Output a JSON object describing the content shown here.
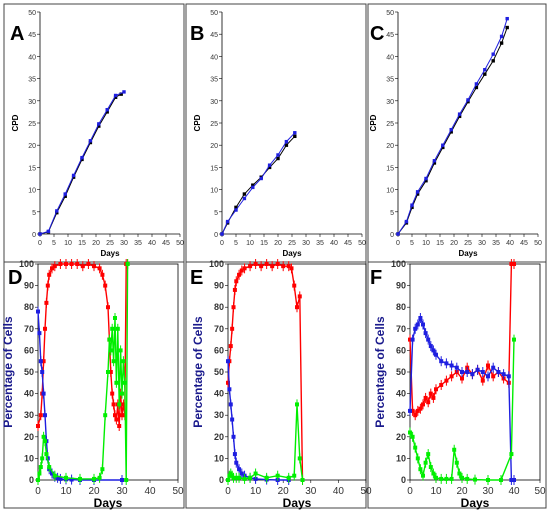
{
  "chart_data": [
    {
      "panel": "A",
      "type": "line",
      "xlabel": "Days",
      "ylabel": "CPD",
      "xlim": [
        0,
        50
      ],
      "ylim": [
        0,
        50
      ],
      "xticks": [
        0,
        5,
        10,
        15,
        20,
        25,
        30,
        35,
        40,
        45,
        50
      ],
      "yticks": [
        0,
        5,
        10,
        15,
        20,
        25,
        30,
        35,
        40,
        45,
        50
      ],
      "series": [
        {
          "color": "#000000",
          "x": [
            0,
            3,
            6,
            9,
            12,
            15,
            18,
            21,
            24,
            27,
            29
          ],
          "y": [
            0,
            0.5,
            4.8,
            8.5,
            12.8,
            16.8,
            20.6,
            24.3,
            27.5,
            30.8,
            31.5
          ]
        },
        {
          "color": "#1f1fe0",
          "x": [
            0,
            3,
            6,
            9,
            12,
            15,
            18,
            21,
            24,
            27,
            30
          ],
          "y": [
            0,
            0.6,
            5.2,
            9.0,
            13.2,
            17.2,
            21.0,
            24.8,
            28.0,
            31.2,
            32.0
          ]
        }
      ]
    },
    {
      "panel": "B",
      "type": "line",
      "xlabel": "Days",
      "ylabel": "CPD",
      "xlim": [
        0,
        50
      ],
      "ylim": [
        0,
        50
      ],
      "xticks": [
        0,
        5,
        10,
        15,
        20,
        25,
        30,
        35,
        40,
        45,
        50
      ],
      "yticks": [
        0,
        5,
        10,
        15,
        20,
        25,
        30,
        35,
        40,
        45,
        50
      ],
      "series": [
        {
          "color": "#000000",
          "x": [
            0,
            2,
            5,
            8,
            11,
            14,
            17,
            20,
            23,
            26
          ],
          "y": [
            0,
            2.5,
            6,
            9,
            11,
            12.8,
            15,
            17,
            20,
            22
          ]
        },
        {
          "color": "#1f1fe0",
          "x": [
            0,
            2,
            5,
            8,
            11,
            14,
            17,
            20,
            23,
            26
          ],
          "y": [
            0,
            2.8,
            5.4,
            8,
            10.5,
            12.5,
            15.5,
            17.8,
            20.8,
            22.8
          ]
        }
      ]
    },
    {
      "panel": "C",
      "type": "line",
      "xlabel": "Days",
      "ylabel": "CPD",
      "xlim": [
        0,
        50
      ],
      "ylim": [
        0,
        50
      ],
      "xticks": [
        0,
        5,
        10,
        15,
        20,
        25,
        30,
        35,
        40,
        45,
        50
      ],
      "yticks": [
        0,
        5,
        10,
        15,
        20,
        25,
        30,
        35,
        40,
        45,
        50
      ],
      "series": [
        {
          "color": "#000000",
          "x": [
            0,
            3,
            5,
            7,
            10,
            13,
            16,
            19,
            22,
            25,
            28,
            31,
            34,
            37,
            39
          ],
          "y": [
            0,
            2.5,
            6,
            9,
            12,
            16,
            19.5,
            23,
            26.5,
            29.8,
            33,
            36,
            39,
            43,
            46.5
          ]
        },
        {
          "color": "#1f1fe0",
          "x": [
            0,
            3,
            5,
            7,
            10,
            13,
            16,
            19,
            22,
            25,
            28,
            31,
            34,
            37,
            39
          ],
          "y": [
            0,
            2.8,
            6.5,
            9.5,
            12.5,
            16.5,
            20,
            23.5,
            27,
            30.2,
            33.8,
            37,
            40.5,
            44.5,
            48.5
          ]
        }
      ]
    },
    {
      "panel": "D",
      "type": "line",
      "xlabel": "Days",
      "ylabel": "Percentage of Cells",
      "xlim": [
        0,
        50
      ],
      "ylim": [
        0,
        100
      ],
      "xticks": [
        0,
        10,
        20,
        30,
        40,
        50
      ],
      "yticks": [
        0,
        10,
        20,
        30,
        40,
        50,
        60,
        70,
        80,
        90,
        100
      ],
      "series": [
        {
          "color": "#ff0000",
          "x": [
            0,
            1,
            1.5,
            2,
            2.5,
            3,
            3.5,
            4,
            5,
            6,
            8,
            10,
            12,
            14,
            16,
            18,
            20,
            22,
            23,
            24,
            25,
            25.5,
            26,
            26.5,
            27,
            27.5,
            28,
            28.5,
            29,
            29.5,
            30,
            30.5,
            31,
            31.5,
            32
          ],
          "y": [
            25,
            30,
            40,
            55,
            70,
            82,
            90,
            95,
            98,
            99,
            100,
            100,
            100,
            100,
            99,
            100,
            99,
            98,
            95,
            90,
            80,
            65,
            50,
            40,
            35,
            30,
            28,
            35,
            25,
            40,
            30,
            35,
            30,
            100,
            100
          ]
        },
        {
          "color": "#1f1fe0",
          "x": [
            0,
            0.5,
            1,
            1.5,
            2,
            2.5,
            3,
            3.5,
            4,
            5,
            6,
            7,
            8,
            10,
            12,
            15,
            20,
            30
          ],
          "y": [
            78,
            68,
            55,
            50,
            40,
            30,
            18,
            10,
            5,
            3,
            1.5,
            1,
            0.5,
            0.3,
            0.2,
            0,
            0,
            0
          ]
        },
        {
          "color": "#00ee00",
          "x": [
            0,
            0.5,
            1,
            1.5,
            2,
            2.5,
            3,
            4,
            6,
            10,
            15,
            20,
            22,
            23,
            24,
            25,
            25.5,
            26,
            26.5,
            27,
            27.5,
            28,
            28.5,
            29,
            29.5,
            30,
            30.5,
            31,
            31.5,
            32
          ],
          "y": [
            0,
            3,
            6,
            10,
            20,
            18,
            12,
            6,
            2,
            1,
            0.5,
            0.5,
            1,
            5,
            30,
            50,
            65,
            60,
            70,
            55,
            75,
            45,
            70,
            35,
            60,
            40,
            55,
            45,
            0,
            100
          ]
        }
      ]
    },
    {
      "panel": "E",
      "type": "line",
      "xlabel": "Days",
      "ylabel": "Percentage of Cells",
      "xlim": [
        0,
        50
      ],
      "ylim": [
        0,
        100
      ],
      "xticks": [
        0,
        10,
        20,
        30,
        40,
        50
      ],
      "yticks": [
        0,
        10,
        20,
        30,
        40,
        50,
        60,
        70,
        80,
        90,
        100
      ],
      "series": [
        {
          "color": "#ff0000",
          "x": [
            0,
            0.5,
            1,
            1.5,
            2,
            2.5,
            3,
            4,
            5,
            6,
            8,
            10,
            12,
            14,
            16,
            18,
            20,
            22,
            23,
            24,
            25,
            26,
            27
          ],
          "y": [
            45,
            55,
            62,
            70,
            80,
            88,
            92,
            95,
            97,
            98,
            99,
            100,
            99,
            100,
            99,
            100,
            99,
            99,
            98,
            90,
            80,
            85,
            0
          ]
        },
        {
          "color": "#1f1fe0",
          "x": [
            0,
            0.5,
            1,
            1.5,
            2,
            2.5,
            3,
            4,
            5,
            6,
            8,
            10,
            14,
            18,
            22
          ],
          "y": [
            55,
            42,
            35,
            28,
            20,
            12,
            8,
            5,
            3,
            2,
            1,
            0.5,
            0.2,
            0,
            0
          ]
        },
        {
          "color": "#00ee00",
          "x": [
            0,
            0.5,
            1,
            1.5,
            2,
            3,
            4,
            6,
            8,
            10,
            14,
            18,
            22,
            24,
            25,
            26,
            27
          ],
          "y": [
            0,
            2,
            3,
            2,
            1,
            1,
            1,
            0.5,
            1,
            3,
            1,
            2,
            1,
            2,
            35,
            10,
            0
          ]
        }
      ]
    },
    {
      "panel": "F",
      "type": "line",
      "xlabel": "Days",
      "ylabel": "Percentage of Cells",
      "xlim": [
        0,
        50
      ],
      "ylim": [
        0,
        100
      ],
      "xticks": [
        0,
        10,
        20,
        30,
        40,
        50
      ],
      "yticks": [
        0,
        10,
        20,
        30,
        40,
        50,
        60,
        70,
        80,
        90,
        100
      ],
      "series": [
        {
          "color": "#ff0000",
          "x": [
            0,
            1,
            2,
            3,
            4,
            5,
            6,
            7,
            8,
            9,
            10,
            12,
            14,
            16,
            18,
            20,
            22,
            24,
            26,
            28,
            30,
            32,
            34,
            36,
            38,
            39,
            40
          ],
          "y": [
            65,
            32,
            30,
            32,
            33,
            35,
            38,
            36,
            40,
            38,
            42,
            44,
            46,
            48,
            50,
            47,
            52,
            49,
            51,
            46,
            53,
            48,
            50,
            47,
            45,
            100,
            100
          ]
        },
        {
          "color": "#1f1fe0",
          "x": [
            0,
            1,
            2,
            3,
            4,
            5,
            6,
            7,
            8,
            9,
            10,
            12,
            14,
            16,
            18,
            20,
            22,
            24,
            26,
            28,
            30,
            32,
            34,
            36,
            38,
            39,
            40
          ],
          "y": [
            32,
            65,
            70,
            72,
            75,
            72,
            68,
            65,
            62,
            60,
            58,
            55,
            54,
            53,
            52,
            50,
            50,
            49,
            51,
            50,
            48,
            52,
            50,
            49,
            48,
            0,
            0
          ]
        },
        {
          "color": "#00ee00",
          "x": [
            0,
            1,
            2,
            3,
            4,
            5,
            6,
            7,
            8,
            9,
            10,
            12,
            14,
            16,
            17,
            18,
            19,
            20,
            22,
            25,
            30,
            35,
            39,
            40
          ],
          "y": [
            22,
            20,
            15,
            10,
            5,
            2,
            8,
            12,
            6,
            3,
            1,
            0.5,
            0.5,
            0.5,
            14,
            8,
            3,
            1,
            0.5,
            0.2,
            0,
            0,
            12,
            65
          ]
        }
      ]
    }
  ]
}
